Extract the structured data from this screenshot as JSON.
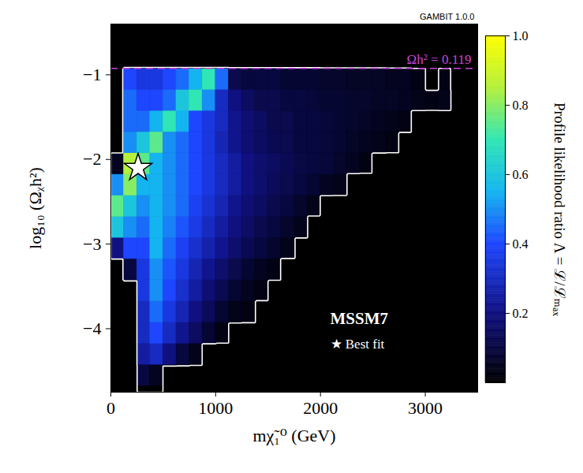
{
  "chart_data": {
    "type": "heatmap",
    "x_label": "mχ̃₁⁰ (GeV)",
    "y_label": "log₁₀ (Ωᵪh²)",
    "xlim": [
      0,
      3500
    ],
    "ylim": [
      -4.75,
      -0.4
    ],
    "xticks": [
      0,
      1000,
      2000,
      3000
    ],
    "yticks": [
      {
        "value": -4,
        "label": "−4"
      },
      {
        "value": -3,
        "label": "−3"
      },
      {
        "value": -2,
        "label": "−2"
      },
      {
        "value": -1,
        "label": "−1"
      }
    ],
    "model_label": "MSSM7",
    "version_label": "GAMBIT 1.0.0",
    "best_fit": {
      "x": 260,
      "y": -2.1,
      "marker": "star",
      "label": "★ Best fit"
    },
    "relic_line": {
      "y": -0.924,
      "label": "Ωh² = 0.119",
      "color": "#cc44dd",
      "line_style": "dashed"
    },
    "colorbar": {
      "label": "Profile likelihood ratio Λ = ℒ/ℒₘₐₓ",
      "range": [
        0,
        1
      ],
      "ticks": [
        0.2,
        0.4,
        0.6,
        0.8,
        {
          "value": 1,
          "label": "1.0"
        }
      ]
    },
    "heatmap": {
      "contour_level": 0.02,
      "x_edges": [
        0,
        125,
        250,
        375,
        500,
        625,
        750,
        875,
        1000,
        1125,
        1250,
        1375,
        1500,
        1625,
        1750,
        1875,
        2000,
        2125,
        2250,
        2375,
        2500,
        2625,
        2750,
        2875,
        3000,
        3125,
        3250,
        3375,
        3500
      ],
      "y_edges": [
        -4.675,
        -4.425,
        -4.175,
        -3.925,
        -3.675,
        -3.425,
        -3.175,
        -2.925,
        -2.675,
        -2.425,
        -2.175,
        -1.925,
        -1.675,
        -1.425,
        -1.175,
        -0.925,
        -0.675
      ],
      "values": [
        [
          0,
          0,
          0.1,
          0.05,
          0,
          0,
          0,
          0,
          0,
          0,
          0,
          0,
          0,
          0,
          0,
          0,
          0,
          0,
          0,
          0,
          0,
          0,
          0,
          0,
          0,
          0,
          0,
          0
        ],
        [
          0,
          0,
          0.25,
          0.3,
          0.2,
          0.1,
          0.04,
          0,
          0,
          0,
          0,
          0,
          0,
          0,
          0,
          0,
          0,
          0,
          0,
          0,
          0,
          0,
          0,
          0,
          0,
          0,
          0,
          0
        ],
        [
          0,
          0,
          0.3,
          0.4,
          0.3,
          0.22,
          0.15,
          0.08,
          0.03,
          0,
          0,
          0,
          0,
          0,
          0,
          0,
          0,
          0,
          0,
          0,
          0,
          0,
          0,
          0,
          0,
          0,
          0,
          0
        ],
        [
          0,
          0,
          0.3,
          0.45,
          0.35,
          0.28,
          0.2,
          0.14,
          0.08,
          0.04,
          0.03,
          0,
          0,
          0,
          0,
          0,
          0,
          0,
          0,
          0,
          0,
          0,
          0,
          0,
          0,
          0,
          0,
          0
        ],
        [
          0,
          0,
          0.35,
          0.5,
          0.4,
          0.32,
          0.25,
          0.18,
          0.13,
          0.08,
          0.05,
          0.03,
          0,
          0,
          0,
          0,
          0,
          0,
          0,
          0,
          0,
          0,
          0,
          0,
          0,
          0,
          0,
          0
        ],
        [
          0,
          0.1,
          0.35,
          0.5,
          0.42,
          0.35,
          0.28,
          0.22,
          0.17,
          0.12,
          0.08,
          0.05,
          0.03,
          0,
          0,
          0,
          0,
          0,
          0,
          0,
          0,
          0,
          0,
          0,
          0,
          0,
          0,
          0
        ],
        [
          0.2,
          0.4,
          0.4,
          0.55,
          0.45,
          0.38,
          0.32,
          0.27,
          0.22,
          0.17,
          0.13,
          0.1,
          0.07,
          0.04,
          0,
          0,
          0,
          0,
          0,
          0,
          0,
          0,
          0,
          0,
          0,
          0,
          0,
          0
        ],
        [
          0.6,
          0.5,
          0.45,
          0.55,
          0.48,
          0.42,
          0.36,
          0.3,
          0.25,
          0.2,
          0.16,
          0.12,
          0.1,
          0.07,
          0.04,
          0,
          0,
          0,
          0,
          0,
          0,
          0,
          0,
          0,
          0,
          0,
          0,
          0
        ],
        [
          0.75,
          0.6,
          0.5,
          0.55,
          0.5,
          0.45,
          0.38,
          0.33,
          0.28,
          0.22,
          0.18,
          0.15,
          0.12,
          0.1,
          0.07,
          0.04,
          0,
          0,
          0,
          0,
          0,
          0,
          0,
          0,
          0,
          0,
          0,
          0
        ],
        [
          0.5,
          0.8,
          0.55,
          0.55,
          0.5,
          0.45,
          0.4,
          0.35,
          0.3,
          0.25,
          0.2,
          0.17,
          0.14,
          0.12,
          0.1,
          0.08,
          0.05,
          0.04,
          0,
          0,
          0,
          0,
          0,
          0,
          0,
          0,
          0,
          0
        ],
        [
          0.05,
          0.85,
          0.75,
          0.55,
          0.5,
          0.45,
          0.4,
          0.35,
          0.3,
          0.25,
          0.2,
          0.17,
          0.15,
          0.13,
          0.11,
          0.1,
          0.09,
          0.07,
          0.05,
          0.03,
          0,
          0,
          0,
          0,
          0,
          0,
          0,
          0
        ],
        [
          0,
          0.5,
          0.6,
          0.75,
          0.5,
          0.45,
          0.4,
          0.35,
          0.28,
          0.22,
          0.18,
          0.15,
          0.13,
          0.12,
          0.1,
          0.1,
          0.09,
          0.08,
          0.06,
          0.05,
          0.04,
          0.03,
          0,
          0,
          0,
          0,
          0,
          0
        ],
        [
          0,
          0.45,
          0.45,
          0.55,
          0.7,
          0.55,
          0.4,
          0.35,
          0.3,
          0.22,
          0.18,
          0.15,
          0.12,
          0.12,
          0.1,
          0.1,
          0.09,
          0.08,
          0.07,
          0.06,
          0.05,
          0.04,
          0.03,
          0,
          0,
          0,
          0,
          0
        ],
        [
          0,
          0.45,
          0.4,
          0.4,
          0.45,
          0.6,
          0.7,
          0.5,
          0.3,
          0.2,
          0.15,
          0.12,
          0.12,
          0.1,
          0.1,
          0.09,
          0.08,
          0.08,
          0.07,
          0.07,
          0.06,
          0.06,
          0.05,
          0.04,
          0.03,
          0.04,
          0,
          0
        ],
        [
          0,
          0.4,
          0.35,
          0.35,
          0.4,
          0.45,
          0.55,
          0.7,
          0.45,
          0.12,
          0.1,
          0.1,
          0.1,
          0.08,
          0.08,
          0.08,
          0.07,
          0.07,
          0.06,
          0.06,
          0.06,
          0.05,
          0.05,
          0.03,
          0,
          0.03,
          0,
          0
        ],
        [
          0,
          0,
          0,
          0,
          0,
          0,
          0,
          0,
          0,
          0,
          0,
          0,
          0,
          0,
          0,
          0,
          0,
          0,
          0,
          0,
          0,
          0,
          0,
          0,
          0,
          0,
          0,
          0
        ]
      ]
    }
  }
}
